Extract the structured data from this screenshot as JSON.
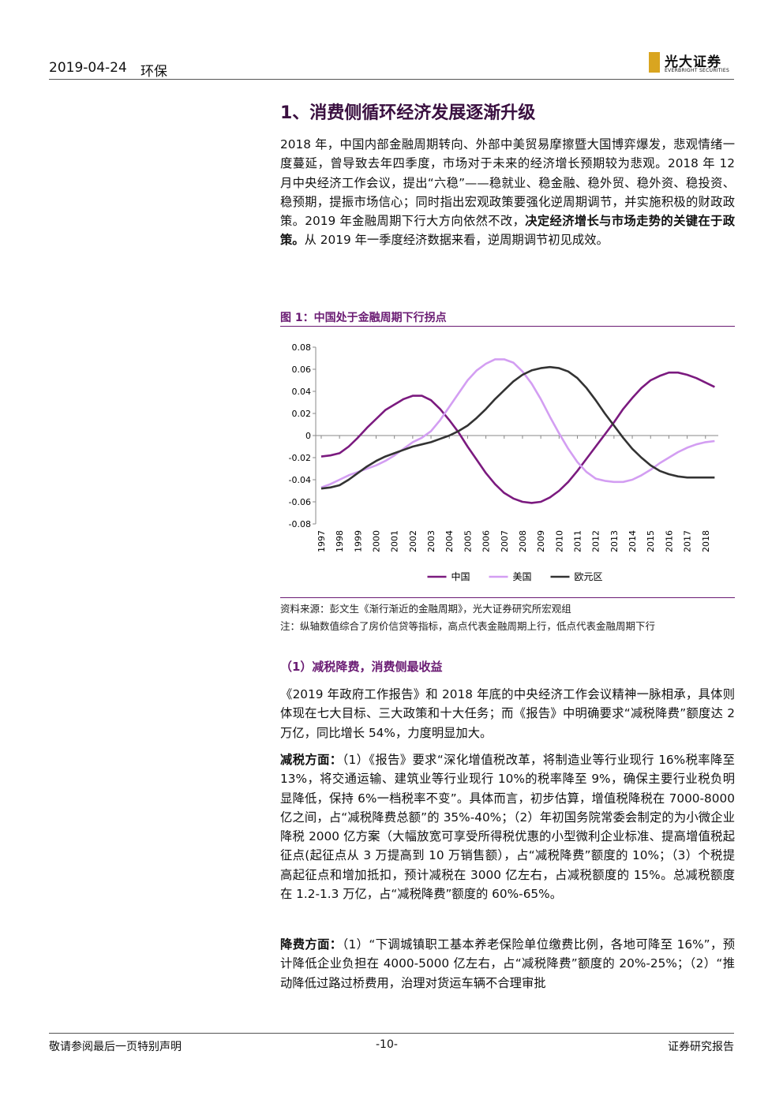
{
  "header": {
    "date": "2019-04-24",
    "sector": "环保",
    "logo_cn": "光大证券",
    "logo_en": "EVERBRIGHT SECURITIES"
  },
  "section_title": "1、消费侧循环经济发展逐渐升级",
  "paragraphs": [
    [
      "2018 年，中国内部金融周期转向、外部中美贸易摩擦暨大国博弈爆发，悲观情绪一度蔓延，曾导致去年四季度，市场对于未来的经济增长预期较为悲观。2018 年 12 月中央经济工作会议，提出“六稳”——稳就业、稳金融、稳外贸、稳外资、稳投资、稳预期，提振市场信心；同时指出宏观政策要强化逆周期调节，并实施积极的财政政策。2019 年金融周期下行大方向依然不改，",
      "决定经济增长与市场走势的关键在于政策。",
      "从 2019 年一季度经济数据来看，逆周期调节初见成效。"
    ]
  ],
  "figure_title": "图 1：中国处于金融周期下行拐点",
  "chart_data": {
    "type": "line",
    "x": [
      1997,
      1997.5,
      1998,
      1998.5,
      1999,
      1999.5,
      2000,
      2000.5,
      2001,
      2001.5,
      2002,
      2002.5,
      2003,
      2003.5,
      2004,
      2004.5,
      2005,
      2005.5,
      2006,
      2006.5,
      2007,
      2007.5,
      2008,
      2008.5,
      2009,
      2009.5,
      2010,
      2010.5,
      2011,
      2011.5,
      2012,
      2012.5,
      2013,
      2013.5,
      2014,
      2014.5,
      2015,
      2015.5,
      2016,
      2016.5,
      2017,
      2017.5,
      2018,
      2018.5
    ],
    "series": [
      {
        "name": "中国",
        "color": "#7b1a7f",
        "values": [
          -0.019,
          -0.018,
          -0.016,
          -0.01,
          -0.002,
          0.007,
          0.015,
          0.023,
          0.028,
          0.033,
          0.036,
          0.036,
          0.032,
          0.024,
          0.014,
          0.003,
          -0.01,
          -0.022,
          -0.034,
          -0.044,
          -0.052,
          -0.057,
          -0.06,
          -0.061,
          -0.06,
          -0.056,
          -0.05,
          -0.042,
          -0.032,
          -0.021,
          -0.01,
          0.001,
          0.012,
          0.024,
          0.034,
          0.043,
          0.05,
          0.054,
          0.057,
          0.057,
          0.055,
          0.052,
          0.048,
          0.044
        ]
      },
      {
        "name": "美国",
        "color": "#d39ef2",
        "values": [
          -0.047,
          -0.044,
          -0.04,
          -0.036,
          -0.033,
          -0.03,
          -0.027,
          -0.023,
          -0.018,
          -0.012,
          -0.006,
          -0.002,
          0.004,
          0.014,
          0.026,
          0.038,
          0.05,
          0.059,
          0.065,
          0.069,
          0.069,
          0.066,
          0.058,
          0.047,
          0.033,
          0.017,
          0.002,
          -0.012,
          -0.024,
          -0.033,
          -0.039,
          -0.041,
          -0.042,
          -0.042,
          -0.04,
          -0.036,
          -0.031,
          -0.025,
          -0.02,
          -0.015,
          -0.011,
          -0.008,
          -0.006,
          -0.005
        ]
      },
      {
        "name": "欧元区",
        "color": "#333333",
        "values": [
          -0.048,
          -0.047,
          -0.045,
          -0.04,
          -0.034,
          -0.028,
          -0.023,
          -0.019,
          -0.016,
          -0.013,
          -0.01,
          -0.008,
          -0.006,
          -0.003,
          0.0,
          0.004,
          0.009,
          0.016,
          0.024,
          0.033,
          0.041,
          0.049,
          0.055,
          0.059,
          0.061,
          0.062,
          0.061,
          0.058,
          0.052,
          0.043,
          0.032,
          0.02,
          0.009,
          -0.002,
          -0.012,
          -0.02,
          -0.027,
          -0.032,
          -0.035,
          -0.037,
          -0.038,
          -0.038,
          -0.038,
          -0.038
        ]
      }
    ],
    "xlim": [
      1996.7,
      2018.7
    ],
    "xticks": [
      1997,
      1998,
      1999,
      2000,
      2001,
      2002,
      2003,
      2004,
      2005,
      2006,
      2007,
      2008,
      2009,
      2010,
      2011,
      2012,
      2013,
      2014,
      2015,
      2016,
      2017,
      2018
    ],
    "ylim": [
      -0.08,
      0.08
    ],
    "yticks": [
      0.08,
      0.06,
      0.04,
      0.02,
      0,
      -0.02,
      -0.04,
      -0.06,
      -0.08
    ],
    "grid": false,
    "legend": "bottom"
  },
  "source": "资料来源：彭文生《渐行渐近的金融周期》，光大证券研究所宏观组",
  "note": "注：纵轴数值综合了房价信贷等指标，高点代表金融周期上行，低点代表金融周期下行",
  "subheading": "（1）减税降费，消费侧最收益",
  "paragraphs2": [
    [
      "《2019 年政府工作报告》和 2018 年底的中央经济工作会议精神一脉相承，具体则体现在七大目标、三大政策和十大任务；而《报告》中明确要求“减税降费”额度达 2 万亿，同比增长 54%，力度明显加大。"
    ],
    [
      "减税方面：",
      "（1）《报告》要求“深化增值税改革，将制造业等行业现行 16%税率降至 13%，将交通运输、建筑业等行业现行 10%的税率降至 9%，确保主要行业税负明显降低，保持 6%一档税率不变”。具体而言，初步估算，增值税降税在 7000-8000 亿之间，占“减税降费总额”的 35%-40%；（2）年初国务院常委会制定的为小微企业降税 2000 亿方案（大幅放宽可享受所得税优惠的小型微利企业标准、提高增值税起征点(起征点从 3 万提高到 10 万销售额），占“减税降费”额度的 10%；（3）个税提高起征点和增加抵扣，预计减税在 3000 亿左右，占减税额度的 15%。总减税额度在 1.2-1.3 万亿，占“减税降费”额度的 60%-65%。"
    ],
    [
      "降费方面：",
      "（1）“下调城镇职工基本养老保险单位缴费比例，各地可降至 16%”，预计降低企业负担在 4000-5000 亿左右，占“减税降费”额度的 20%-25%；（2）“推动降低过路过桥费用，治理对货运车辆不合理审批"
    ]
  ],
  "footer": {
    "left": "敬请参阅最后一页特别声明",
    "center": "-10-",
    "right": "证券研究报告"
  }
}
